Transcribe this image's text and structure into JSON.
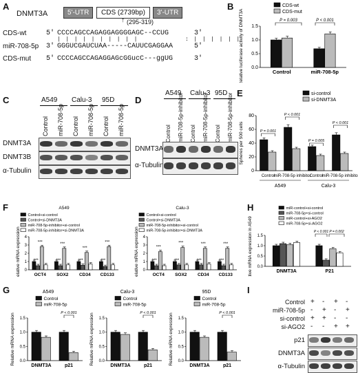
{
  "panels": {
    "A": {
      "letter": "A",
      "gene": "DNMT3A",
      "utr5": "5'-UTR",
      "cds": "CDS (2739bp)",
      "utr3": "3'-UTR",
      "site": "(295-319)",
      "rows": [
        {
          "label": "CDS-wt",
          "p5": "5'",
          "seq": "CCCCAGCCAGAGGAGGGGAGC--CCUG",
          "p3": "3'"
        },
        {
          "label": "miR-708-5p",
          "p5": "3'",
          "seq": "GGGUCGAUCUAA-----CAUUCGAGGAA",
          "p3": "5'"
        },
        {
          "label": "CDS-mut",
          "p5": "5'",
          "seq": "CCCCAGCCAGAGGAGcGGucC---ggUG",
          "p3": "3'"
        }
      ]
    },
    "B": {
      "letter": "B",
      "ylabel": "Relative luciferase activity of DNMT3A",
      "legend": [
        "CDS-wt",
        "CDS-mut"
      ],
      "p1": "P = 0.003",
      "p2": "P < 0.001",
      "ticks": [
        "0.0",
        "0.5",
        "1.0",
        "1.5"
      ]
    },
    "C": {
      "letter": "C",
      "cells": [
        "A549",
        "Calu-3",
        "95D"
      ],
      "lanes": [
        "Control",
        "miR-708-5p",
        "Control",
        "miR-708-5p",
        "Control",
        "miR-708-5p"
      ],
      "proteins": [
        "DNMT3A",
        "DNMT3B",
        "α-Tubulin"
      ]
    },
    "D": {
      "letter": "D",
      "cells": [
        "A549",
        "Calu-3",
        "95D"
      ],
      "lanes": [
        "Control",
        "miR-708-5p-inhibitor",
        "Control",
        "miR-708-5p-inhibitor",
        "Control",
        "miR-708-5p-inhibitor"
      ],
      "proteins": [
        "DNMT3A",
        "α-Tubulin"
      ]
    },
    "E": {
      "letter": "E",
      "ylabel": "Spheres per 500 cells",
      "legend": [
        "si-control",
        "si-DNMT3A"
      ],
      "pvals": [
        "P = 0.001",
        "P < 0.001",
        "P = 0.005",
        "P < 0.001"
      ],
      "groups": [
        "Control",
        "miR-708-5p inhibitor",
        "Control",
        "miR-708-5p inhibitor"
      ],
      "cells": [
        "A549",
        "Calu-3"
      ],
      "ticks": [
        "0",
        "20",
        "40",
        "60",
        "80"
      ]
    },
    "F": {
      "letter": "F",
      "ylabel": "Relative mRNA expression",
      "titles": [
        "A549",
        "Calu-3"
      ],
      "legend": [
        "Control+si-control",
        "Control+si-DNMT3A",
        "miR-708-5p-inhibitor+si-control",
        "miR-708-5p-inhibitor+si-DNMT3A"
      ],
      "genes": [
        "OCT4",
        "SOX2",
        "CD34",
        "CD133"
      ],
      "stars": "***",
      "ticks": [
        "0",
        "1",
        "2",
        "3",
        "4"
      ]
    },
    "G": {
      "letter": "G",
      "ylabel": "Relative mRNA expression",
      "titles": [
        "A549",
        "Calu-3",
        "95D"
      ],
      "legend": [
        "Control",
        "miR-708-5p"
      ],
      "pval": "P < 0.001",
      "genes": [
        "DNMT3A",
        "p21"
      ],
      "ticks": [
        "0.0",
        "0.5",
        "1.0",
        "1.5"
      ]
    },
    "H": {
      "letter": "H",
      "ylabel": "Relative mRNA expression in A549",
      "legend": [
        "miR-control+si-control",
        "miR-708-5p+si-control",
        "miR-control+si-AGO2",
        "miR-708-5p+si-AGO2"
      ],
      "p1": "P < 0.001",
      "p2": "P = 0.002",
      "genes": [
        "DNMT3A",
        "P21"
      ],
      "ticks": [
        "0.0",
        "0.5",
        "1.0",
        "1.5"
      ]
    },
    "I": {
      "letter": "I",
      "rows": [
        {
          "label": "Control",
          "signs": [
            "+",
            "-",
            "+",
            "-"
          ]
        },
        {
          "label": "miR-708-5p",
          "signs": [
            "-",
            "+",
            "-",
            "+"
          ]
        },
        {
          "label": "si-control",
          "signs": [
            "+",
            "+",
            "-",
            "-"
          ]
        },
        {
          "label": "si-AGO2",
          "signs": [
            "-",
            "-",
            "+",
            "+"
          ]
        }
      ],
      "proteins": [
        "p21",
        "DNMT3A",
        "α-Tubulin"
      ]
    }
  },
  "chart_data": [
    {
      "type": "bar",
      "panel": "B",
      "categories": [
        "Control",
        "miR-708-5p"
      ],
      "series": [
        {
          "name": "CDS-wt",
          "values": [
            1.0,
            0.68
          ]
        },
        {
          "name": "CDS-mut",
          "values": [
            1.07,
            1.22
          ]
        }
      ],
      "ylabel": "Relative luciferase activity of DNMT3A",
      "ylim": [
        0,
        1.5
      ]
    },
    {
      "type": "bar",
      "panel": "E",
      "categories": [
        "Control",
        "miR-708-5p inhibitor",
        "Control",
        "miR-708-5p inhibitor"
      ],
      "series": [
        {
          "name": "si-control",
          "values": [
            45,
            63,
            35,
            52
          ]
        },
        {
          "name": "si-DNMT3A",
          "values": [
            27,
            32,
            22,
            25
          ]
        }
      ],
      "ylabel": "Spheres per 500 cells",
      "ylim": [
        0,
        80
      ]
    },
    {
      "type": "bar",
      "panel": "F-A549",
      "categories": [
        "OCT4",
        "SOX2",
        "CD34",
        "CD133"
      ],
      "series": [
        {
          "name": "Control+si-control",
          "values": [
            1.0,
            1.0,
            1.0,
            1.0
          ]
        },
        {
          "name": "Control+si-DNMT3A",
          "values": [
            0.5,
            0.5,
            0.55,
            0.4
          ]
        },
        {
          "name": "miR-708-5p-inhibitor+si-control",
          "values": [
            2.8,
            2.6,
            2.1,
            2.8
          ]
        },
        {
          "name": "miR-708-5p-inhibitor+si-DNMT3A",
          "values": [
            0.6,
            0.6,
            0.7,
            0.6
          ]
        }
      ],
      "ylabel": "Relative mRNA expression",
      "ylim": [
        0,
        4
      ]
    },
    {
      "type": "bar",
      "panel": "F-Calu-3",
      "categories": [
        "OCT4",
        "SOX2",
        "CD34",
        "CD133"
      ],
      "series": [
        {
          "name": "Control+si-control",
          "values": [
            1.0,
            1.0,
            1.0,
            1.0
          ]
        },
        {
          "name": "Control+si-DNMT3A",
          "values": [
            0.5,
            0.6,
            0.6,
            0.5
          ]
        },
        {
          "name": "miR-708-5p-inhibitor+si-control",
          "values": [
            2.2,
            2.7,
            2.6,
            2.6
          ]
        },
        {
          "name": "miR-708-5p-inhibitor+si-DNMT3A",
          "values": [
            0.5,
            0.6,
            0.7,
            0.6
          ]
        }
      ],
      "ylabel": "Relative mRNA expression",
      "ylim": [
        0,
        4
      ]
    },
    {
      "type": "bar",
      "panel": "G-A549",
      "categories": [
        "DNMT3A",
        "p21"
      ],
      "series": [
        {
          "name": "Control",
          "values": [
            1.0,
            1.0
          ]
        },
        {
          "name": "miR-708-5p",
          "values": [
            0.82,
            0.28
          ]
        }
      ],
      "ylim": [
        0,
        1.5
      ]
    },
    {
      "type": "bar",
      "panel": "G-Calu-3",
      "categories": [
        "DNMT3A",
        "p21"
      ],
      "series": [
        {
          "name": "Control",
          "values": [
            1.0,
            1.0
          ]
        },
        {
          "name": "miR-708-5p",
          "values": [
            0.92,
            0.38
          ]
        }
      ],
      "ylim": [
        0,
        1.5
      ]
    },
    {
      "type": "bar",
      "panel": "G-95D",
      "categories": [
        "DNMT3A",
        "p21"
      ],
      "series": [
        {
          "name": "Control",
          "values": [
            1.0,
            1.0
          ]
        },
        {
          "name": "miR-708-5p",
          "values": [
            0.82,
            0.3
          ]
        }
      ],
      "ylim": [
        0,
        1.5
      ]
    },
    {
      "type": "bar",
      "panel": "H",
      "categories": [
        "DNMT3A",
        "P21"
      ],
      "series": [
        {
          "name": "miR-control+si-control",
          "values": [
            1.0,
            1.0
          ]
        },
        {
          "name": "miR-708-5p+si-control",
          "values": [
            1.1,
            0.3
          ]
        },
        {
          "name": "miR-control+si-AGO2",
          "values": [
            1.05,
            0.85
          ]
        },
        {
          "name": "miR-708-5p+si-AGO2",
          "values": [
            1.15,
            0.65
          ]
        }
      ],
      "ylim": [
        0,
        1.5
      ]
    }
  ],
  "colors": {
    "black": "#111111",
    "darkgray": "#555555",
    "lightgray": "#bbbbbb",
    "white": "#ffffff"
  }
}
